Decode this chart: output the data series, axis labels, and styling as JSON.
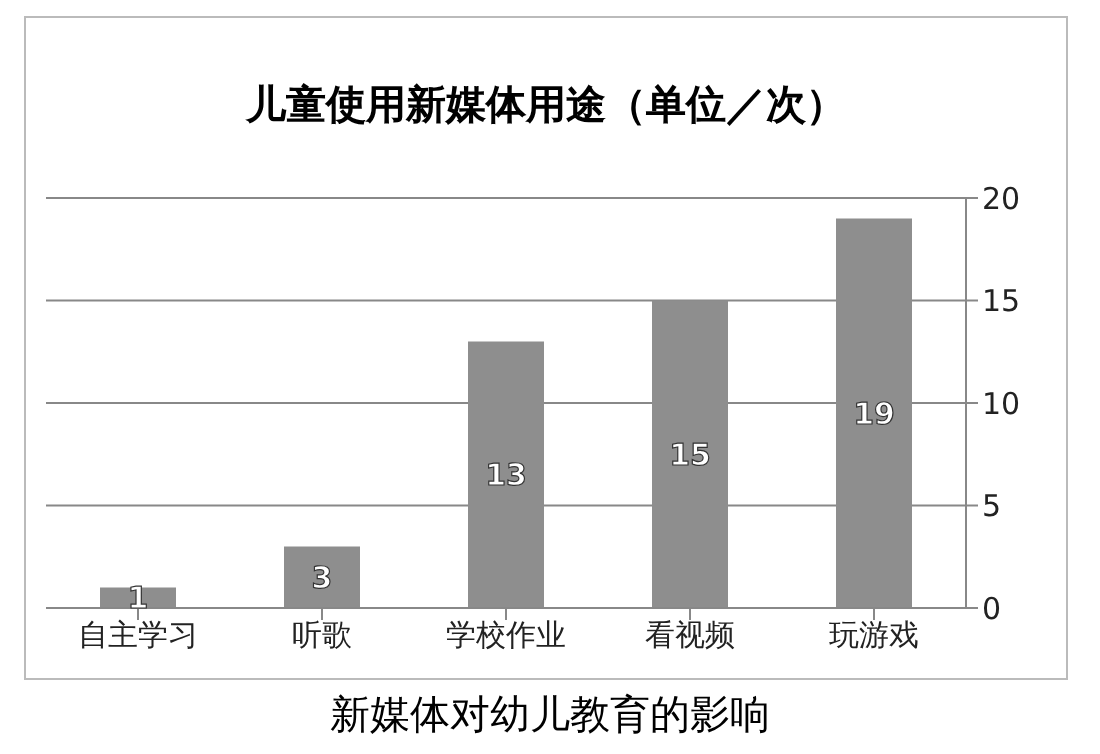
{
  "chart_data": {
    "type": "bar",
    "title": "儿童使用新媒体用途（单位／次）",
    "categories": [
      "自主学习",
      "听歌",
      "学校作业",
      "看视频",
      "玩游戏"
    ],
    "values": [
      1,
      3,
      13,
      15,
      19
    ],
    "color": "#8e8e8e",
    "ylim": [
      0,
      20
    ],
    "yticks": [
      0,
      5,
      10,
      15,
      20
    ],
    "grid": "y",
    "data_labels": true,
    "annotations": [
      "新媒体对幼儿教育的影响"
    ]
  }
}
